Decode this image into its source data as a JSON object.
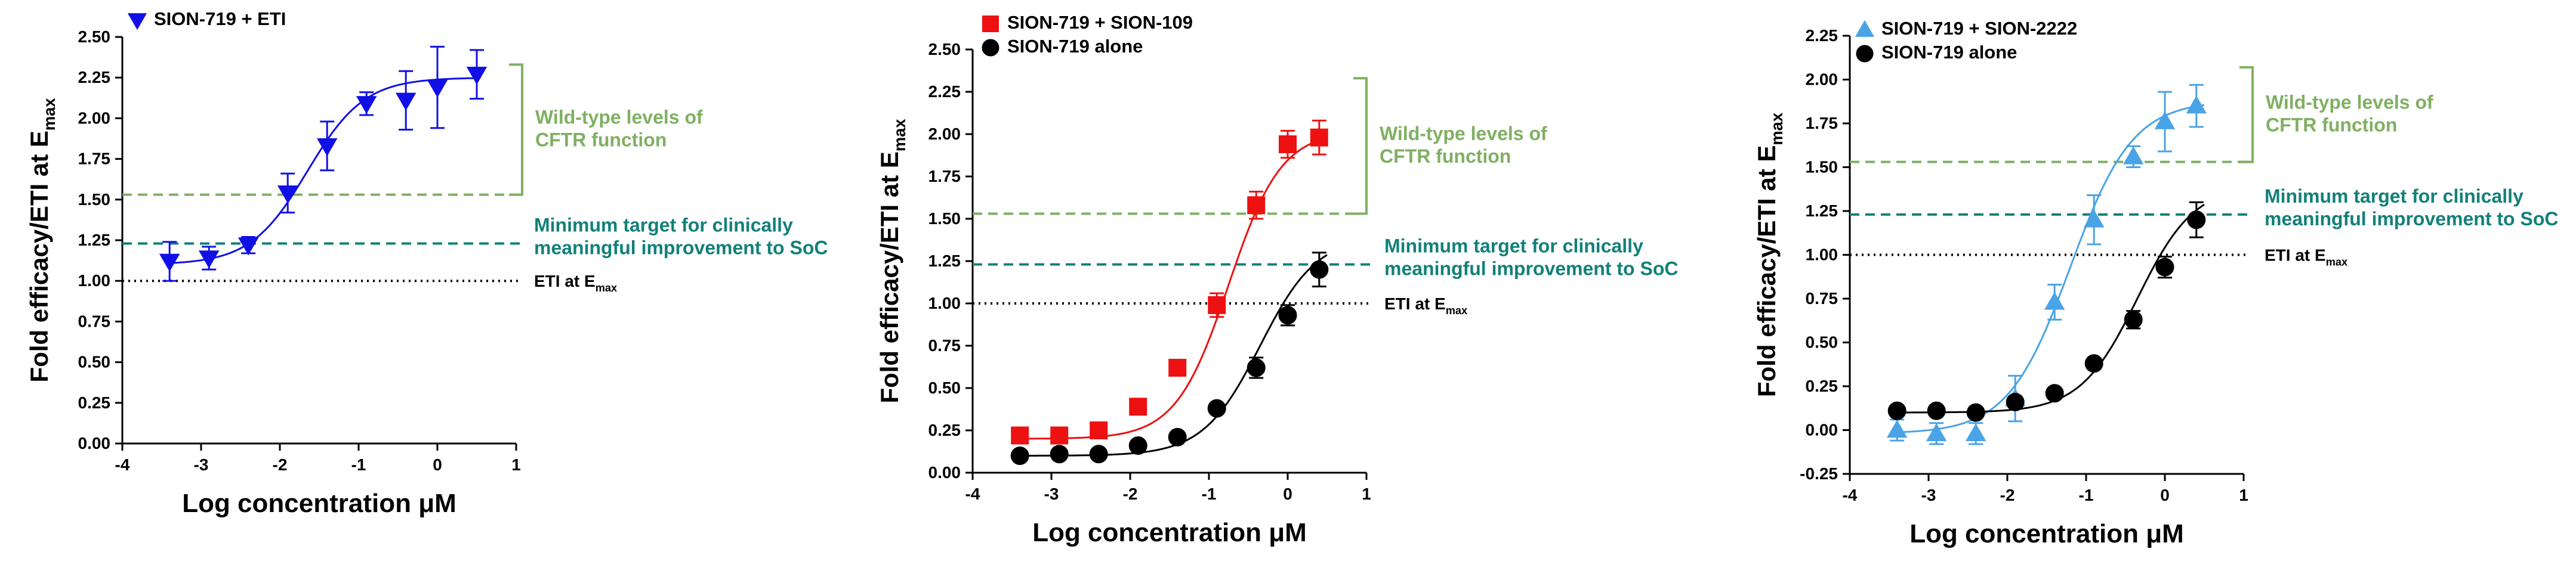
{
  "colors": {
    "eti": "#1010e6",
    "sion109": "#ee1111",
    "sion2222": "#4aa3e6",
    "alone": "#000000",
    "wildtype": "#7fb062",
    "target": "#12807a",
    "eti_emax": "#000000",
    "axis": "#000000"
  },
  "chart_data": [
    {
      "type": "scatter",
      "title": "",
      "xlabel": "Log concentration μM",
      "ylabel_main": "Fold efficacy/ETI at E",
      "ylabel_sub": "max",
      "xlim": [
        -4,
        1
      ],
      "ylim": [
        0,
        2.5
      ],
      "xticks": [
        "-4",
        "-3",
        "-2",
        "-1",
        "0",
        "1"
      ],
      "yticks": [
        "0.00",
        "0.25",
        "0.50",
        "0.75",
        "1.00",
        "1.25",
        "1.50",
        "1.75",
        "2.00",
        "2.25",
        "2.50"
      ],
      "series": [
        {
          "name": "SION-719 + ETI",
          "marker": "triangle-down",
          "x": [
            -3.4,
            -2.9,
            -2.4,
            -1.9,
            -1.4,
            -0.9,
            -0.4,
            0.0,
            0.5
          ],
          "y": [
            1.12,
            1.14,
            1.22,
            1.54,
            1.83,
            2.09,
            2.11,
            2.19,
            2.27
          ],
          "err": [
            0.12,
            0.07,
            0.05,
            0.12,
            0.15,
            0.07,
            0.18,
            0.25,
            0.15
          ],
          "fit": {
            "bottom": 1.1,
            "top": 2.25,
            "logEC50": -1.65,
            "hill": 1.2
          }
        }
      ],
      "reference_lines": {
        "wildtype": {
          "y": 1.53,
          "label_lines": [
            "Wild-type levels of",
            "CFTR function"
          ],
          "bracket_top": 2.33
        },
        "target": {
          "y": 1.23,
          "label_lines": [
            "Minimum target for clinically",
            "meaningful improvement to SoC"
          ]
        },
        "eti_emax": {
          "y": 1.0,
          "label": "ETI at E",
          "label_sub": "max"
        }
      },
      "legend_position": "top-left"
    },
    {
      "type": "scatter",
      "title": "",
      "xlabel": "Log concentration μM",
      "ylabel_main": "Fold efficacy/ETI at E",
      "ylabel_sub": "max",
      "xlim": [
        -4,
        1
      ],
      "ylim": [
        0,
        2.5
      ],
      "xticks": [
        "-4",
        "-3",
        "-2",
        "-1",
        "0",
        "1"
      ],
      "yticks": [
        "0.00",
        "0.25",
        "0.50",
        "0.75",
        "1.00",
        "1.25",
        "1.50",
        "1.75",
        "2.00",
        "2.25",
        "2.50"
      ],
      "series": [
        {
          "name": "SION-719 + SION-109",
          "marker": "square",
          "x": [
            -3.4,
            -2.9,
            -2.4,
            -1.9,
            -1.4,
            -0.9,
            -0.4,
            0.0,
            0.4
          ],
          "y": [
            0.22,
            0.22,
            0.25,
            0.39,
            0.62,
            0.99,
            1.58,
            1.94,
            1.98
          ],
          "err": [
            0.02,
            0.02,
            0.02,
            0.03,
            0.04,
            0.07,
            0.08,
            0.08,
            0.1
          ],
          "fit": {
            "bottom": 0.2,
            "top": 2.02,
            "logEC50": -0.75,
            "hill": 1.3
          }
        },
        {
          "name": "SION-719 alone",
          "marker": "circle",
          "x": [
            -3.4,
            -2.9,
            -2.4,
            -1.9,
            -1.4,
            -0.9,
            -0.4,
            0.0,
            0.4
          ],
          "y": [
            0.1,
            0.11,
            0.11,
            0.16,
            0.21,
            0.38,
            0.62,
            0.93,
            1.2
          ],
          "err": [
            0.02,
            0.02,
            0.02,
            0.02,
            0.02,
            0.03,
            0.06,
            0.06,
            0.1
          ],
          "fit": {
            "bottom": 0.1,
            "top": 1.4,
            "logEC50": -0.35,
            "hill": 1.2
          }
        }
      ],
      "reference_lines": {
        "wildtype": {
          "y": 1.53,
          "label_lines": [
            "Wild-type levels of",
            "CFTR function"
          ],
          "bracket_top": 2.33
        },
        "target": {
          "y": 1.23,
          "label_lines": [
            "Minimum target for clinically",
            "meaningful improvement to SoC"
          ]
        },
        "eti_emax": {
          "y": 1.0,
          "label": "ETI at E",
          "label_sub": "max"
        }
      },
      "legend_position": "top-left"
    },
    {
      "type": "scatter",
      "title": "",
      "xlabel": "Log concentration μM",
      "ylabel_main": "Fold efficacy/ETI at E",
      "ylabel_sub": "max",
      "xlim": [
        -4,
        1
      ],
      "ylim": [
        -0.25,
        2.25
      ],
      "xticks": [
        "-4",
        "-3",
        "-2",
        "-1",
        "0",
        "1"
      ],
      "yticks": [
        "-0.25",
        "0.00",
        "0.25",
        "0.50",
        "0.75",
        "1.00",
        "1.25",
        "1.50",
        "1.75",
        "2.00",
        "2.25"
      ],
      "series": [
        {
          "name": "SION-719 + SION-2222",
          "marker": "triangle-up",
          "x": [
            -3.4,
            -2.9,
            -2.4,
            -1.9,
            -1.4,
            -0.9,
            -0.4,
            0.0,
            0.4
          ],
          "y": [
            0.0,
            -0.02,
            -0.02,
            0.18,
            0.73,
            1.2,
            1.56,
            1.76,
            1.85
          ],
          "err": [
            0.06,
            0.06,
            0.06,
            0.13,
            0.1,
            0.14,
            0.06,
            0.17,
            0.12
          ],
          "fit": {
            "bottom": -0.02,
            "top": 1.88,
            "logEC50": -1.2,
            "hill": 1.1
          }
        },
        {
          "name": "SION-719 alone",
          "marker": "circle",
          "x": [
            -3.4,
            -2.9,
            -2.4,
            -1.9,
            -1.4,
            -0.9,
            -0.4,
            0.0,
            0.4
          ],
          "y": [
            0.11,
            0.11,
            0.1,
            0.16,
            0.21,
            0.38,
            0.63,
            0.93,
            1.2
          ],
          "err": [
            0.02,
            0.02,
            0.02,
            0.02,
            0.02,
            0.03,
            0.05,
            0.06,
            0.1
          ],
          "fit": {
            "bottom": 0.1,
            "top": 1.4,
            "logEC50": -0.35,
            "hill": 1.2
          }
        }
      ],
      "reference_lines": {
        "wildtype": {
          "y": 1.53,
          "label_lines": [
            "Wild-type levels of",
            "CFTR function"
          ],
          "bracket_top": 2.07
        },
        "target": {
          "y": 1.23,
          "label_lines": [
            "Minimum target for clinically",
            "meaningful improvement to SoC"
          ]
        },
        "eti_emax": {
          "y": 1.0,
          "label": "ETI at E",
          "label_sub": "max"
        }
      },
      "legend_position": "top-left"
    }
  ]
}
